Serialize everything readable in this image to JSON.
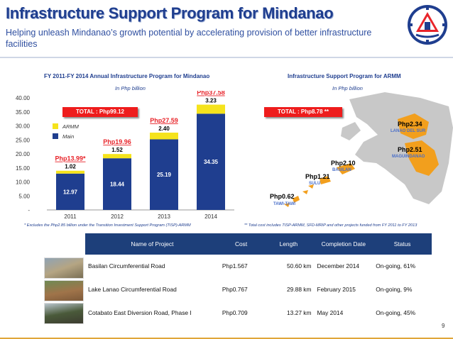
{
  "header": {
    "title": "Infrastructure Support Program for Mindanao",
    "subtitle": "Helping unleash Mindanao’s growth potential by accelerating provision of better infrastructure facilities"
  },
  "chart_data": {
    "type": "bar",
    "stacked": true,
    "title": "FY 2011-FY 2014 Annual Infrastructure Program for Mindanao",
    "unit_note": "In Php billion",
    "categories": [
      "2011",
      "2012",
      "2013",
      "2014"
    ],
    "series": [
      {
        "name": "Main",
        "values": [
          12.97,
          18.44,
          25.19,
          34.35
        ],
        "color": "#1f3e8f"
      },
      {
        "name": "ARMM",
        "values": [
          1.02,
          1.52,
          2.4,
          3.23
        ],
        "color": "#f5e31c"
      }
    ],
    "totals": [
      "Php13.99*",
      "Php19.96",
      "Php27.59",
      "Php37.58"
    ],
    "ylim": [
      0,
      40
    ],
    "yticks": [
      "-",
      "5.00",
      "10.00",
      "15.00",
      "20.00",
      "25.00",
      "30.00",
      "35.00",
      "40.00"
    ],
    "total_box": "TOTAL :  Php99.12",
    "legend_position": "top-left",
    "footnote": "* Excludes the Php2.85 billion under the Transition Investment Support Program (TISP)-ARMM"
  },
  "map": {
    "title": "Infrastructure Support Program for ARMM",
    "unit_note": "In Php billion",
    "total_box": "TOTAL :  Php8.78 **",
    "regions": [
      {
        "amount": "Php2.34",
        "name": "LANAO DEL SUR"
      },
      {
        "amount": "Php2.51",
        "name": "MAGUINDANAO"
      },
      {
        "amount": "Php2.10",
        "name": "BASILAN"
      },
      {
        "amount": "Php1.21",
        "name": "SULU"
      },
      {
        "amount": "Php0.62",
        "name": "TAWI-TAWI"
      }
    ],
    "footnote": "**  Total cost includes TISP-ARMM, SFD-MRIP and other projects funded from FY 2011 to FY 2013"
  },
  "table": {
    "headers": [
      "Name of Project",
      "Cost",
      "Length",
      "Completion Date",
      "Status"
    ],
    "rows": [
      [
        "Basilan Circumferential Road",
        "Php1.567",
        "50.60 km",
        "December 2014",
        "On-going, 61%"
      ],
      [
        "Lake Lanao Circumferential Road",
        "Php0.767",
        "29.88 km",
        "February 2015",
        "On-going, 9%"
      ],
      [
        "Cotabato East Diversion Road, Phase I",
        "Php0.709",
        "13.27 km",
        "May 2014",
        "On-going, 45%"
      ]
    ]
  },
  "page_number": "9"
}
